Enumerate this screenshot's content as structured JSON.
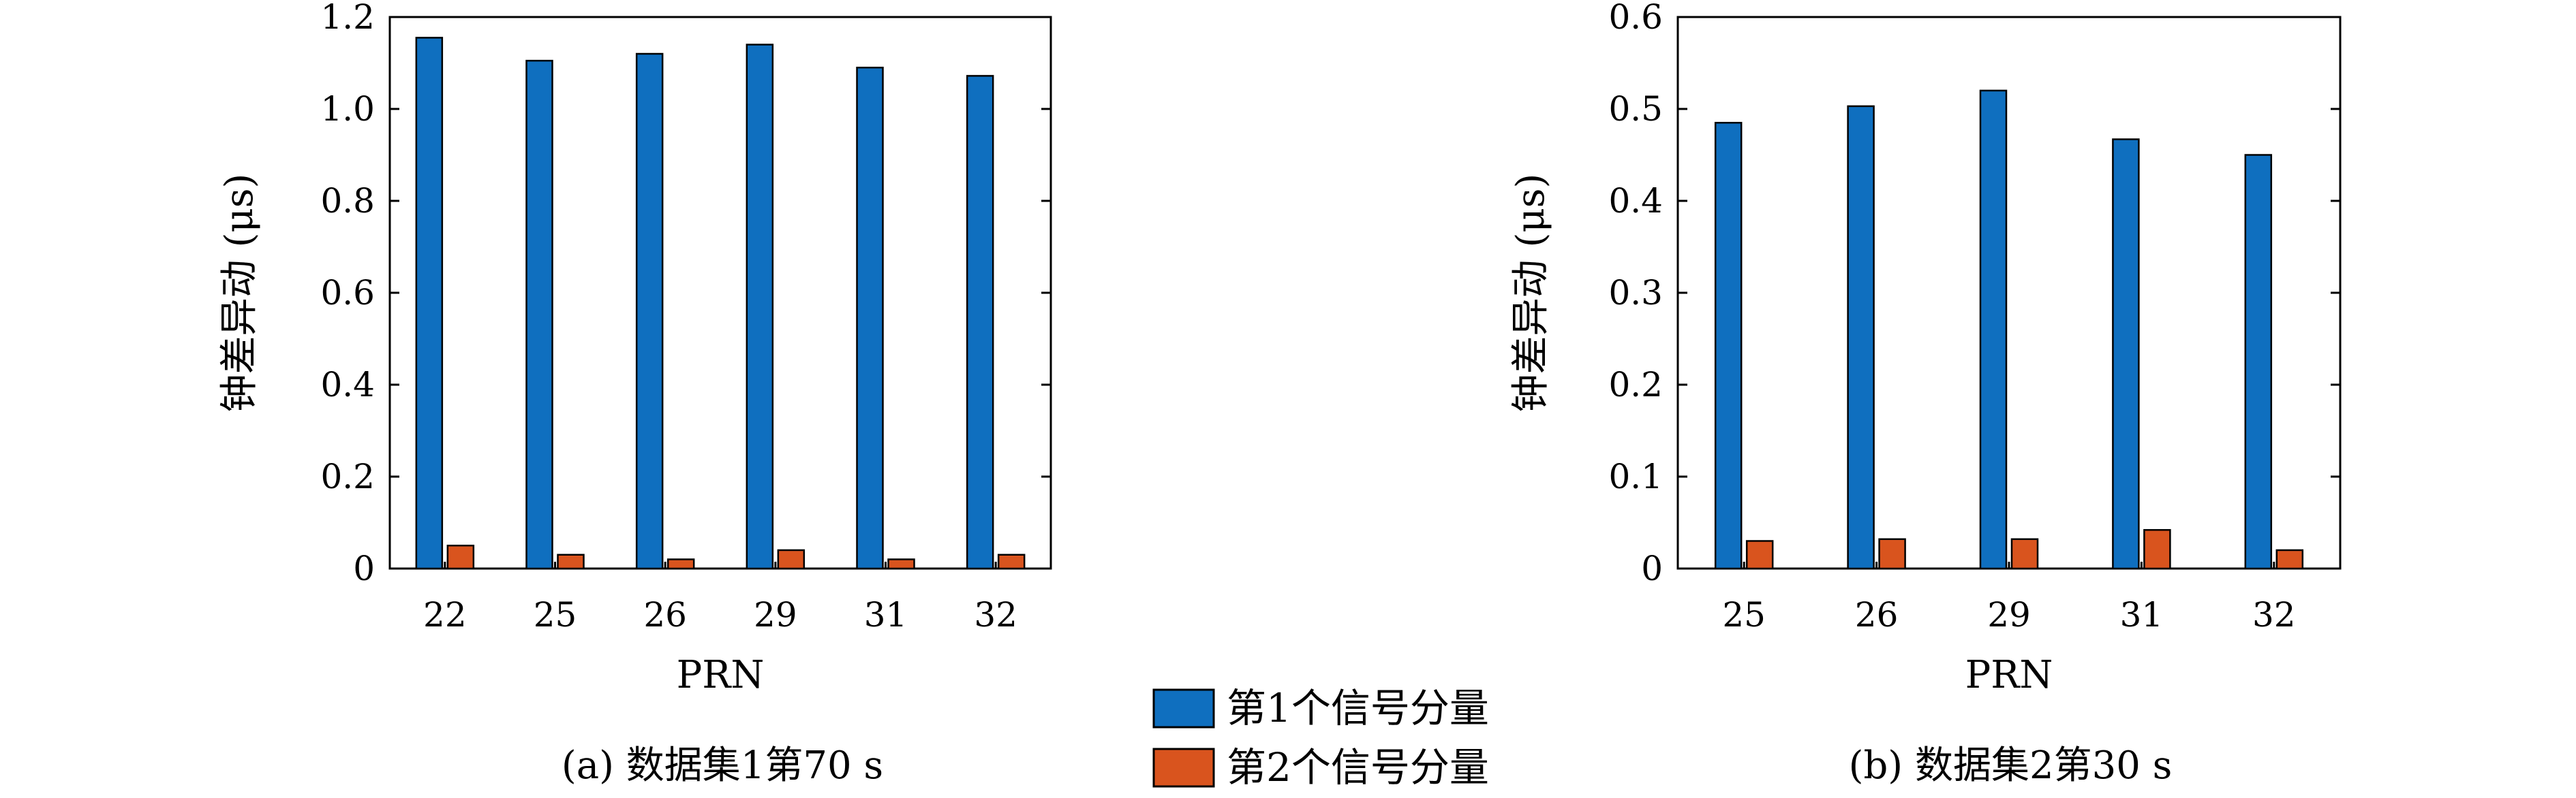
{
  "chart_data": [
    {
      "type": "bar",
      "caption": "(a) 数据集1第70 s",
      "xlabel": "PRN",
      "ylabel": "钟差异动 (μs)",
      "categories": [
        "22",
        "25",
        "26",
        "29",
        "31",
        "32"
      ],
      "ylim": [
        0,
        1.2
      ],
      "yticks": [
        "0",
        "0.2",
        "0.4",
        "0.6",
        "0.8",
        "1.0",
        "1.2"
      ],
      "series": [
        {
          "name": "第1个信号分量",
          "values": [
            1.155,
            1.105,
            1.12,
            1.14,
            1.09,
            1.072
          ]
        },
        {
          "name": "第2个信号分量",
          "values": [
            0.05,
            0.03,
            0.02,
            0.04,
            0.02,
            0.03
          ]
        }
      ],
      "grid": false
    },
    {
      "type": "bar",
      "caption": "(b) 数据集2第30 s",
      "xlabel": "PRN",
      "ylabel": "钟差异动 (μs)",
      "categories": [
        "25",
        "26",
        "29",
        "31",
        "32"
      ],
      "ylim": [
        0,
        0.6
      ],
      "yticks": [
        "0",
        "0.1",
        "0.2",
        "0.3",
        "0.4",
        "0.5",
        "0.6"
      ],
      "series": [
        {
          "name": "第1个信号分量",
          "values": [
            0.485,
            0.503,
            0.52,
            0.467,
            0.45
          ]
        },
        {
          "name": "第2个信号分量",
          "values": [
            0.03,
            0.032,
            0.032,
            0.042,
            0.02
          ]
        }
      ],
      "grid": false
    }
  ],
  "legend": {
    "placement": "bottom-center",
    "items": [
      {
        "label": "第1个信号分量",
        "color": "#0f6fbf"
      },
      {
        "label": "第2个信号分量",
        "color": "#d9541e"
      }
    ]
  }
}
